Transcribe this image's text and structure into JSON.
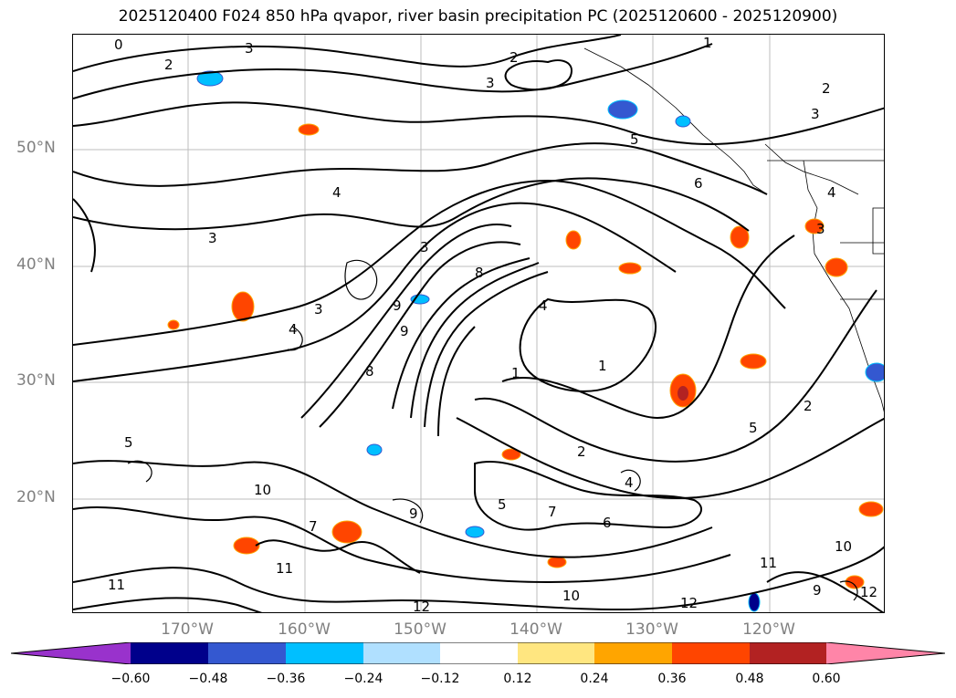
{
  "title": "2025120400 F024 850 hPa qvapor, river basin precipitation PC (2025120600 - 2025120900)",
  "latitude_labels": [
    "50°N",
    "40°N",
    "30°N",
    "20°N"
  ],
  "longitude_labels": [
    "170°W",
    "160°W",
    "150°W",
    "140°W",
    "130°W",
    "120°W"
  ],
  "contour_labels": [
    "0",
    "2",
    "3",
    "2",
    "3",
    "1",
    "2",
    "3",
    "5",
    "6",
    "3",
    "4",
    "3",
    "3",
    "4",
    "9",
    "8",
    "4",
    "1",
    "1",
    "2",
    "5",
    "9",
    "8",
    "3",
    "4",
    "2",
    "4",
    "5",
    "10",
    "7",
    "9",
    "5",
    "7",
    "6",
    "11",
    "10",
    "12",
    "11",
    "12",
    "10",
    "9",
    "11",
    "12"
  ],
  "colorbar": {
    "ticks": [
      "−0.60",
      "−0.48",
      "−0.36",
      "−0.24",
      "−0.12",
      "0.12",
      "0.24",
      "0.36",
      "0.48",
      "0.60"
    ],
    "colors": [
      "#9932cc",
      "#00008b",
      "#3458d0",
      "#00bfff",
      "#b0e0ff",
      "#ffffff",
      "#ffe680",
      "#ffa500",
      "#ff4500",
      "#b22222",
      "#ff85a8"
    ]
  }
}
